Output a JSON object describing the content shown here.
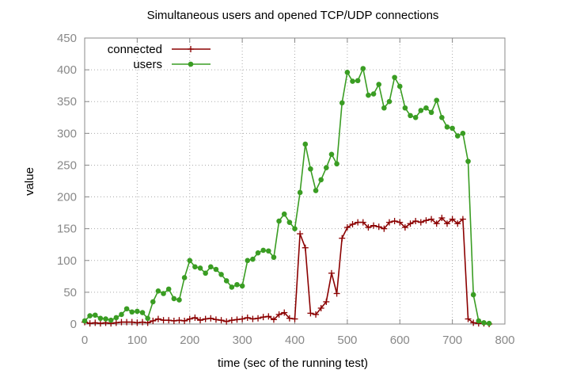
{
  "chart_data": {
    "type": "line",
    "title": "Simultaneous users and opened TCP/UDP connections",
    "xlabel": "time (sec of the running test)",
    "ylabel": "value",
    "xlim": [
      0,
      800
    ],
    "ylim": [
      0,
      450
    ],
    "xticks": [
      0,
      100,
      200,
      300,
      400,
      500,
      600,
      700,
      800
    ],
    "yticks": [
      0,
      50,
      100,
      150,
      200,
      250,
      300,
      350,
      400,
      450
    ],
    "grid": true,
    "legend_position": "top-left",
    "series": [
      {
        "name": "connected",
        "color": "#8b0000",
        "marker": "plus",
        "x": [
          0,
          10,
          20,
          30,
          40,
          50,
          60,
          70,
          80,
          90,
          100,
          110,
          120,
          130,
          140,
          150,
          160,
          170,
          180,
          190,
          200,
          210,
          220,
          230,
          240,
          250,
          260,
          270,
          280,
          290,
          300,
          310,
          320,
          330,
          340,
          350,
          360,
          370,
          380,
          390,
          400,
          410,
          420,
          430,
          440,
          450,
          460,
          470,
          480,
          490,
          500,
          510,
          520,
          530,
          540,
          550,
          560,
          570,
          580,
          590,
          600,
          610,
          620,
          630,
          640,
          650,
          660,
          670,
          680,
          690,
          700,
          710,
          720,
          730,
          740,
          750,
          760,
          770
        ],
        "y": [
          3,
          1,
          2,
          1,
          2,
          1,
          2,
          3,
          3,
          3,
          2,
          3,
          2,
          5,
          8,
          6,
          6,
          5,
          6,
          5,
          8,
          10,
          6,
          8,
          9,
          7,
          6,
          4,
          6,
          7,
          8,
          10,
          8,
          9,
          11,
          12,
          7,
          15,
          18,
          9,
          8,
          142,
          120,
          17,
          15,
          25,
          35,
          80,
          48,
          135,
          152,
          157,
          160,
          160,
          152,
          155,
          153,
          150,
          160,
          162,
          160,
          152,
          158,
          162,
          160,
          163,
          165,
          158,
          167,
          158,
          165,
          158,
          165,
          8,
          2,
          1,
          1,
          0
        ]
      },
      {
        "name": "users",
        "color": "#3a9d23",
        "marker": "circle",
        "x": [
          0,
          10,
          20,
          30,
          40,
          50,
          60,
          70,
          80,
          90,
          100,
          110,
          120,
          130,
          140,
          150,
          160,
          170,
          180,
          190,
          200,
          210,
          220,
          230,
          240,
          250,
          260,
          270,
          280,
          290,
          300,
          310,
          320,
          330,
          340,
          350,
          360,
          370,
          380,
          390,
          400,
          410,
          420,
          430,
          440,
          450,
          460,
          470,
          480,
          490,
          500,
          510,
          520,
          530,
          540,
          550,
          560,
          570,
          580,
          590,
          600,
          610,
          620,
          630,
          640,
          650,
          660,
          670,
          680,
          690,
          700,
          710,
          720,
          730,
          740,
          750,
          760,
          770
        ],
        "y": [
          5,
          13,
          14,
          9,
          8,
          6,
          10,
          15,
          24,
          19,
          20,
          18,
          9,
          35,
          52,
          48,
          55,
          40,
          38,
          73,
          100,
          90,
          88,
          80,
          90,
          86,
          78,
          68,
          58,
          62,
          60,
          100,
          102,
          112,
          116,
          115,
          105,
          162,
          173,
          160,
          150,
          207,
          283,
          244,
          210,
          227,
          246,
          267,
          252,
          348,
          396,
          382,
          383,
          402,
          360,
          362,
          377,
          340,
          350,
          388,
          374,
          340,
          328,
          325,
          336,
          340,
          333,
          352,
          325,
          310,
          308,
          296,
          300,
          256,
          46,
          5,
          2,
          1
        ]
      }
    ]
  }
}
